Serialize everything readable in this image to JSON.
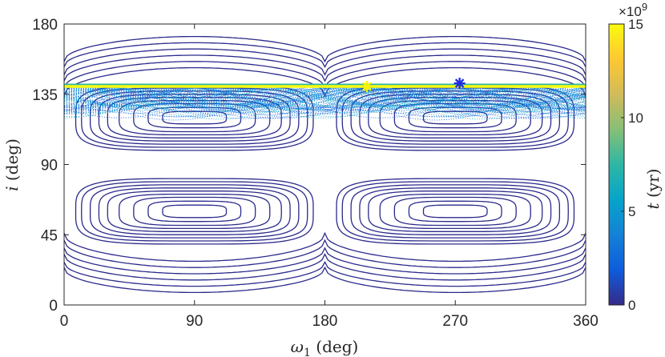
{
  "chart_data": {
    "type": "line",
    "xlabel": "ω1 (deg)",
    "ylabel": "i (deg)",
    "xlim": [
      0,
      360
    ],
    "ylim": [
      0,
      180
    ],
    "x_ticks": [
      "0",
      "90",
      "180",
      "270",
      "360"
    ],
    "y_ticks": [
      "0",
      "45",
      "90",
      "135",
      "180"
    ],
    "grid": false,
    "series": [
      {
        "kind": "contour",
        "role": "upper-circulating",
        "i_at_w90": [
          172,
          168,
          164,
          160,
          156,
          152
        ],
        "i_at_w180": [
          140,
          137,
          131,
          127,
          121,
          116
        ]
      },
      {
        "kind": "contour",
        "role": "upper-librating",
        "center": [
          90,
          120
        ],
        "center_repeat": [
          270,
          120
        ],
        "half_width_w": [
          22,
          32,
          42,
          52,
          60,
          66,
          72,
          78,
          82
        ],
        "half_height_i": [
          4,
          6.5,
          9,
          11,
          13,
          15,
          17,
          19,
          21
        ]
      },
      {
        "kind": "contour",
        "role": "lower-librating",
        "center": [
          90,
          60
        ],
        "center_repeat": [
          270,
          60
        ],
        "half_width_w": [
          22,
          32,
          42,
          52,
          60,
          66,
          72,
          78,
          82
        ],
        "half_height_i": [
          4,
          6.5,
          9,
          11,
          13,
          15,
          17,
          19,
          21
        ]
      },
      {
        "kind": "contour",
        "role": "lower-circulating",
        "i_at_w90": [
          8,
          12,
          16,
          20,
          24,
          28
        ],
        "i_at_w180": [
          40,
          43,
          49,
          53,
          59,
          64
        ]
      },
      {
        "kind": "trajectory",
        "role": "colored-evolution-band",
        "i_min": 115,
        "i_max": 140,
        "t_range": [
          0,
          15
        ]
      },
      {
        "kind": "line",
        "role": "final-state",
        "i": 140,
        "t": 15
      }
    ],
    "markers": [
      {
        "x": 273,
        "y": 142,
        "color": "#1f2fe0",
        "shape": "asterisk",
        "role": "start"
      },
      {
        "x": 209,
        "y": 140,
        "color": "#f5f500",
        "shape": "asterisk",
        "role": "end"
      }
    ],
    "colorbar": {
      "label": "t (yr)",
      "ticks": [
        "0",
        "5",
        "10",
        "15"
      ],
      "range": [
        0,
        15
      ],
      "exponent_label": "×10",
      "exponent_power": "9",
      "colormap": [
        "#352a87",
        "#0f5cdd",
        "#1481d6",
        "#06a4ca",
        "#2eb7a4",
        "#87bf77",
        "#d1bb59",
        "#fec832",
        "#f9fb0e"
      ]
    },
    "colors": {
      "contour": "#2b2b8c",
      "axis": "#262626"
    }
  }
}
